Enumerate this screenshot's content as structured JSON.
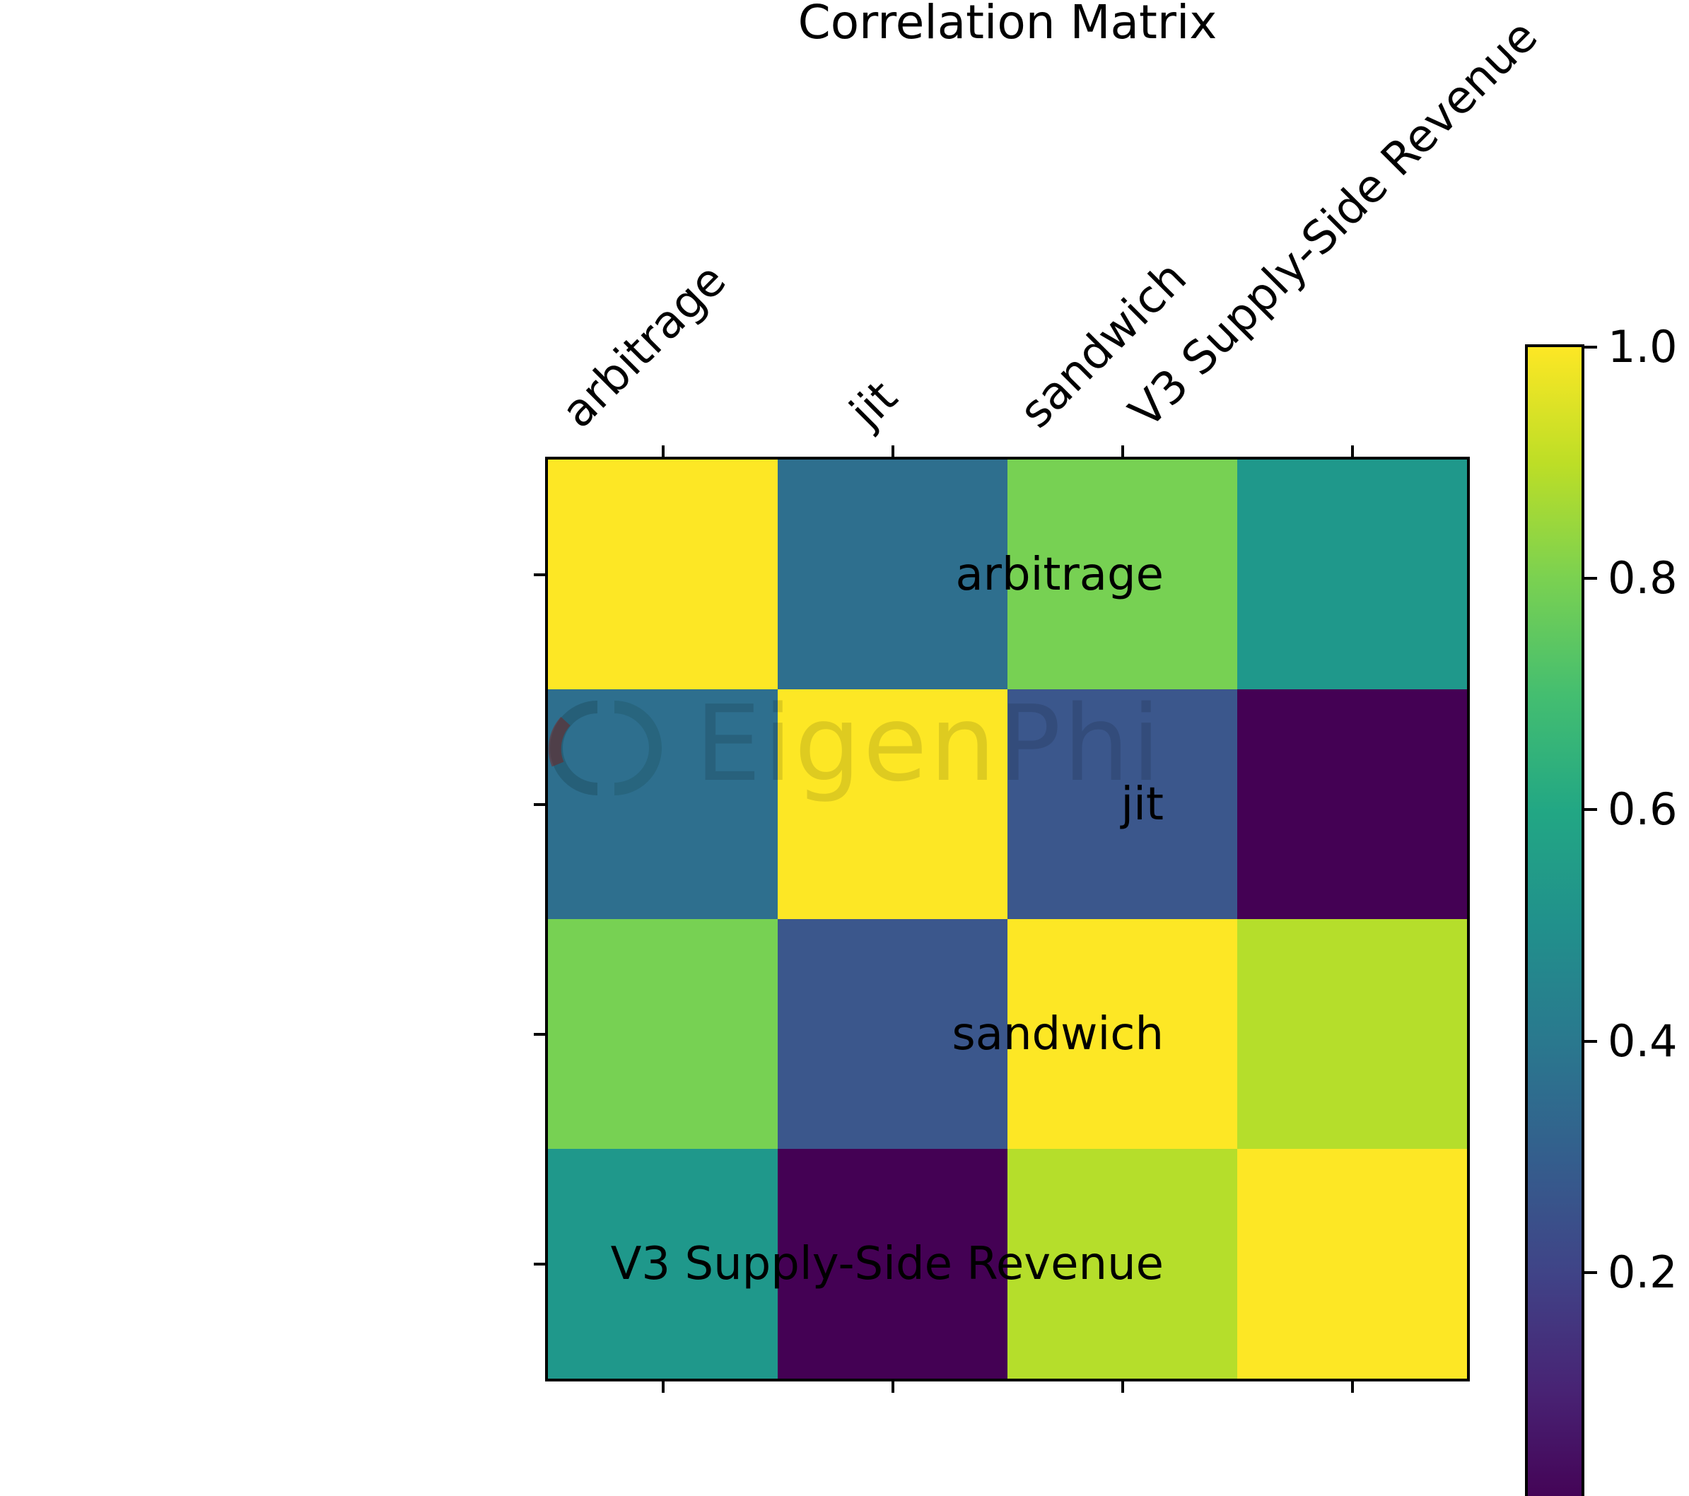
{
  "title": "Correlation Matrix",
  "watermark": {
    "text": "EigenPhi",
    "logo": "eigenphi-ring-logo"
  },
  "chart_data": {
    "type": "heatmap",
    "title": "Correlation Matrix",
    "categories": [
      "arbitrage",
      "jit",
      "sandwich",
      "V3 Supply-Side Revenue"
    ],
    "x_tick_rotation_deg": 45,
    "colormap": "viridis",
    "matrix": [
      [
        1.0,
        0.38,
        0.8,
        0.54
      ],
      [
        0.38,
        1.0,
        0.27,
        0.01
      ],
      [
        0.8,
        0.27,
        1.0,
        0.88
      ],
      [
        0.54,
        0.01,
        0.88,
        1.0
      ]
    ],
    "cell_colors": [
      [
        "#fde725",
        "#2e6f8e",
        "#77d153",
        "#1f988b"
      ],
      [
        "#2e6f8e",
        "#fde725",
        "#3b578c",
        "#440154"
      ],
      [
        "#77d153",
        "#3b578c",
        "#fde725",
        "#b5de2b"
      ],
      [
        "#1f988b",
        "#440154",
        "#b5de2b",
        "#fde725"
      ]
    ],
    "colorbar": {
      "vmax": 1.0,
      "vmin": 0.0,
      "tick_labels": [
        "1.0",
        "0.8",
        "0.6",
        "0.4",
        "0.2"
      ],
      "tick_values": [
        1.0,
        0.8,
        0.6,
        0.4,
        0.2
      ],
      "gradient_top_to_bottom": [
        "#fde725",
        "#bdde26",
        "#7ad151",
        "#44be70",
        "#22a784",
        "#21908c",
        "#2a788e",
        "#345e8d",
        "#404387",
        "#482374",
        "#440154"
      ]
    }
  }
}
